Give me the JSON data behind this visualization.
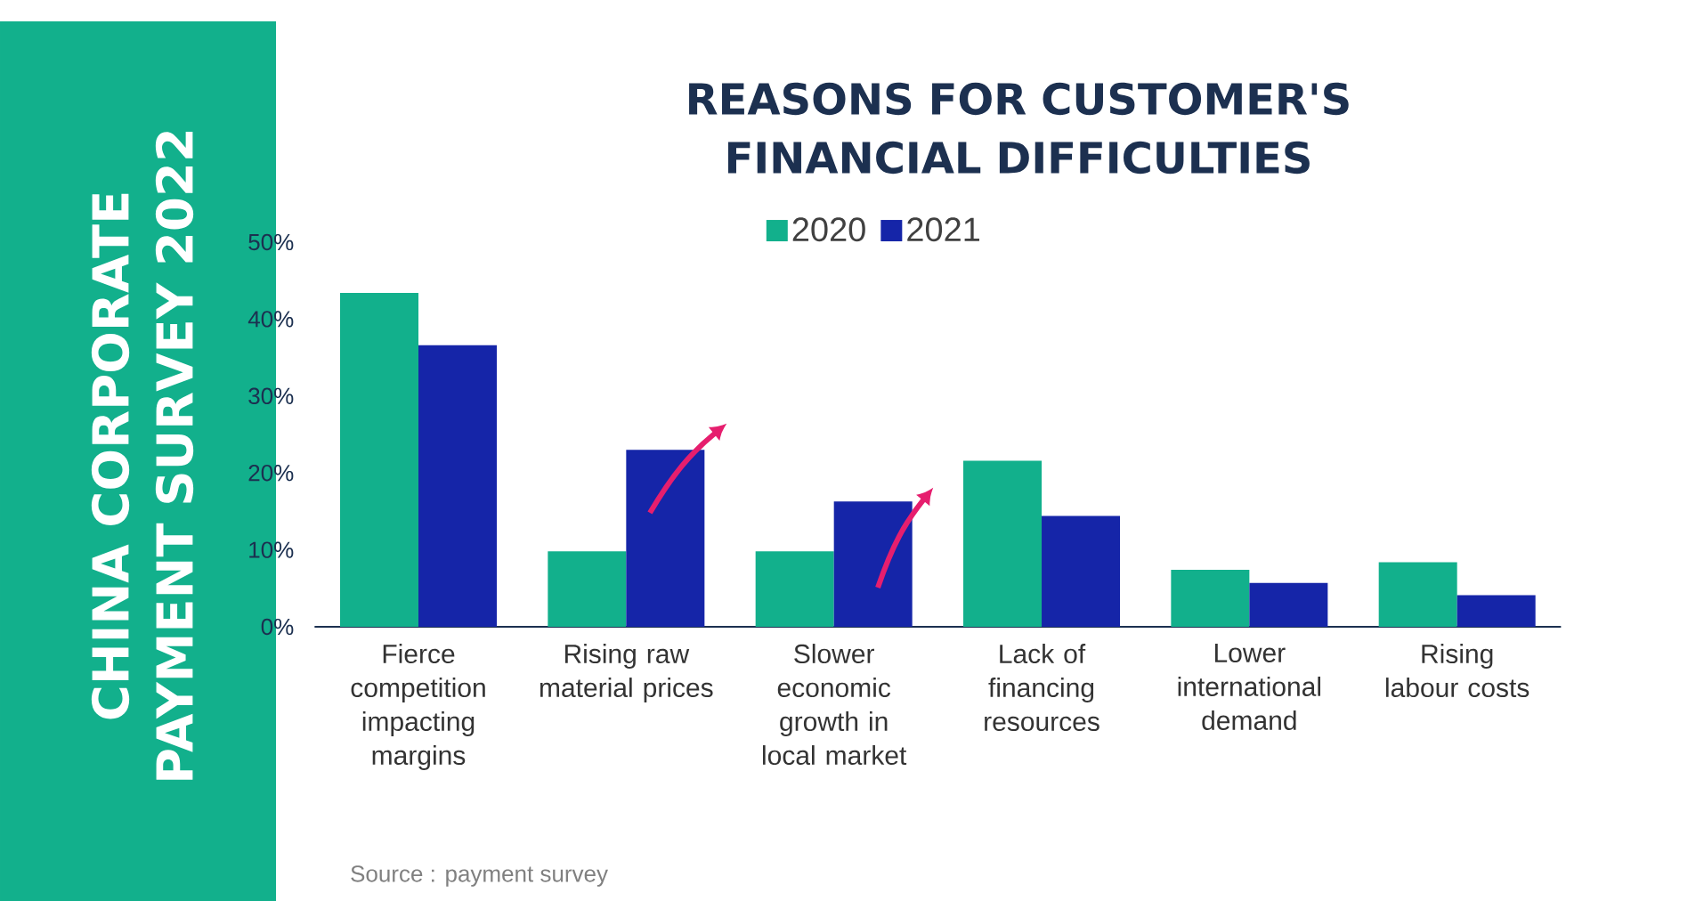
{
  "chart_data": {
    "type": "bar",
    "title": "REASONS FOR CUSTOMER'S FINANCIAL DIFFICULTIES",
    "subtitle": "CHINA CORPORATE PAYMENT SURVEY 2022",
    "categories": [
      "Fierce competition impacting margins",
      "Rising raw material prices",
      "Slower economic growth in local market",
      "Lack of financing resources",
      "Lower international demand",
      "Rising labour costs"
    ],
    "series": [
      {
        "name": "2020",
        "color": "#12b08c",
        "values": [
          43.4,
          9.8,
          9.8,
          21.6,
          7.4,
          8.4
        ]
      },
      {
        "name": "2021",
        "color": "#1525a8",
        "values": [
          36.6,
          23.0,
          16.3,
          14.4,
          5.7,
          4.1
        ]
      }
    ],
    "ylim": [
      0,
      50
    ],
    "yticks": [
      {
        "value": 0,
        "label": "0%"
      },
      {
        "value": 10,
        "label": "10%"
      },
      {
        "value": 20,
        "label": "20%"
      },
      {
        "value": 30,
        "label": "30%"
      },
      {
        "value": 40,
        "label": "40%"
      },
      {
        "value": 50,
        "label": "50%"
      }
    ],
    "legend": "top",
    "annotations": [
      "Source : payment survey"
    ]
  }
}
